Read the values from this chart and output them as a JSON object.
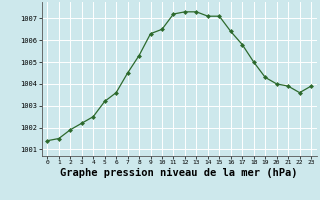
{
  "x": [
    0,
    1,
    2,
    3,
    4,
    5,
    6,
    7,
    8,
    9,
    10,
    11,
    12,
    13,
    14,
    15,
    16,
    17,
    18,
    19,
    20,
    21,
    22,
    23
  ],
  "y": [
    1001.4,
    1001.5,
    1001.9,
    1002.2,
    1002.5,
    1003.2,
    1003.6,
    1004.5,
    1005.3,
    1006.3,
    1006.5,
    1007.2,
    1007.3,
    1007.3,
    1007.1,
    1007.1,
    1006.4,
    1005.8,
    1005.0,
    1004.3,
    1004.0,
    1003.9,
    1003.6,
    1003.9
  ],
  "line_color": "#2d6a2d",
  "marker_color": "#2d6a2d",
  "bg_color": "#cde8ec",
  "grid_color": "#ffffff",
  "xlabel": "Graphe pression niveau de la mer (hPa)",
  "yticks": [
    1001,
    1002,
    1003,
    1004,
    1005,
    1006,
    1007
  ],
  "xticks": [
    0,
    1,
    2,
    3,
    4,
    5,
    6,
    7,
    8,
    9,
    10,
    11,
    12,
    13,
    14,
    15,
    16,
    17,
    18,
    19,
    20,
    21,
    22,
    23
  ],
  "ylim": [
    1000.7,
    1007.75
  ],
  "xlim": [
    -0.5,
    23.5
  ]
}
